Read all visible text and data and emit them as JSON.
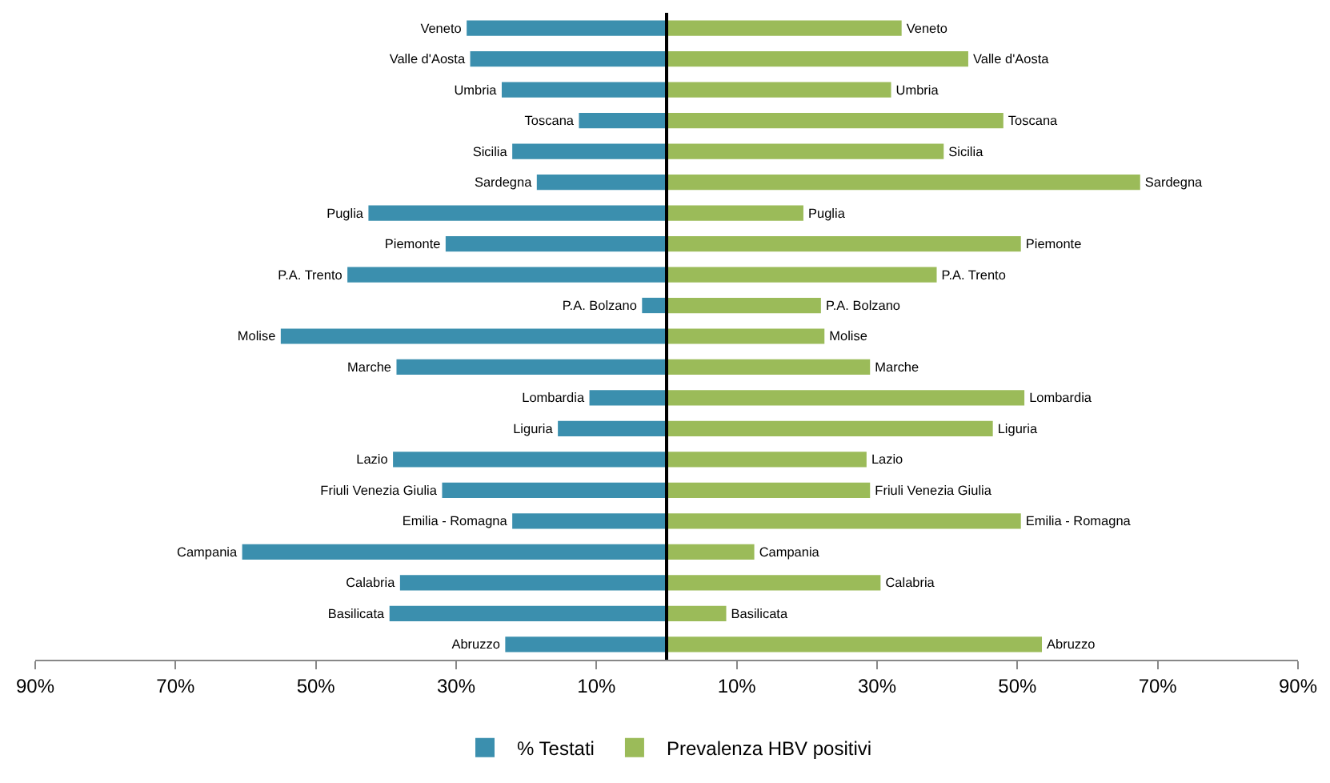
{
  "chart_data": {
    "type": "bar",
    "orientation": "horizontal",
    "categories": [
      "Veneto",
      "Valle d'Aosta",
      "Umbria",
      "Toscana",
      "Sicilia",
      "Sardegna",
      "Puglia",
      "Piemonte",
      "P.A. Trento",
      "P.A. Bolzano",
      "Molise",
      "Marche",
      "Lombardia",
      "Liguria",
      "Lazio",
      "Friuli Venezia Giulia",
      "Emilia - Romagna",
      "Campania",
      "Calabria",
      "Basilicata",
      "Abruzzo"
    ],
    "series": [
      {
        "name": "% Testati",
        "color": "#3b8fae",
        "values": [
          -28.5,
          -28,
          -23.5,
          -12.5,
          -22,
          -18.5,
          -42.5,
          -31.5,
          -45.5,
          -3.5,
          -55,
          -38.5,
          -11,
          -15.5,
          -39,
          -32,
          -22,
          -60.5,
          -38,
          -39.5,
          -23
        ]
      },
      {
        "name": "Prevalenza HBV positivi",
        "color": "#9bbb59",
        "values": [
          33.5,
          43,
          32,
          48,
          39.5,
          67.5,
          19.5,
          50.5,
          38.5,
          22,
          22.5,
          29,
          51,
          46.5,
          28.5,
          29,
          50.5,
          12.5,
          30.5,
          8.5,
          53.5
        ]
      }
    ],
    "xlim": [
      -90,
      90
    ],
    "xticks": [
      {
        "value": -90,
        "label": "90%"
      },
      {
        "value": -70,
        "label": "70%"
      },
      {
        "value": -50,
        "label": "50%"
      },
      {
        "value": -30,
        "label": "30%"
      },
      {
        "value": -10,
        "label": "10%"
      },
      {
        "value": 10,
        "label": "10%"
      },
      {
        "value": 30,
        "label": "30%"
      },
      {
        "value": 50,
        "label": "50%"
      },
      {
        "value": 70,
        "label": "70%"
      },
      {
        "value": 90,
        "label": "90%"
      }
    ],
    "stacked": true,
    "legend": "bottom"
  }
}
